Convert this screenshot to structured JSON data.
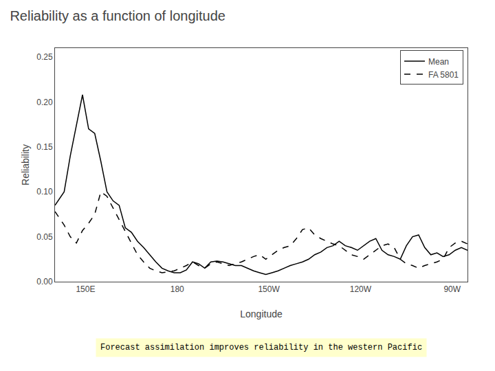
{
  "chart_data": {
    "type": "line",
    "title": "Reliability as a function of longitude",
    "subtitle": "Forecast assimilation improves reliability in the western Pacific",
    "xlabel": "Longitude",
    "ylabel": "Reliability",
    "x": [
      140,
      143,
      145,
      147,
      149,
      151,
      153,
      155,
      157,
      159,
      161,
      163,
      165,
      167,
      169,
      171,
      173,
      175,
      177,
      179,
      181,
      183,
      185,
      187,
      189,
      191,
      193,
      195,
      197,
      199,
      201,
      203,
      205,
      207,
      209,
      211,
      213,
      215,
      217,
      219,
      221,
      223,
      225,
      227,
      229,
      231,
      233,
      235,
      237,
      239,
      241,
      243,
      245,
      247,
      249,
      251,
      253,
      255,
      257,
      259,
      261,
      263,
      265,
      267,
      269,
      271,
      273,
      275
    ],
    "series": [
      {
        "name": "Mean",
        "color": "#000000",
        "line_style": "solid",
        "values": [
          0.085,
          0.1,
          0.14,
          0.175,
          0.208,
          0.17,
          0.165,
          0.134,
          0.1,
          0.09,
          0.085,
          0.06,
          0.055,
          0.045,
          0.038,
          0.03,
          0.022,
          0.015,
          0.012,
          0.01,
          0.01,
          0.013,
          0.022,
          0.02,
          0.015,
          0.022,
          0.023,
          0.022,
          0.02,
          0.018,
          0.018,
          0.015,
          0.012,
          0.01,
          0.008,
          0.01,
          0.012,
          0.015,
          0.018,
          0.02,
          0.022,
          0.025,
          0.03,
          0.033,
          0.038,
          0.04,
          0.045,
          0.04,
          0.038,
          0.035,
          0.04,
          0.045,
          0.048,
          0.035,
          0.03,
          0.028,
          0.025,
          0.04,
          0.05,
          0.052,
          0.038,
          0.03,
          0.032,
          0.028,
          0.03,
          0.035,
          0.038,
          0.035
        ]
      },
      {
        "name": "FA 5801",
        "color": "#000000",
        "line_style": "dashed",
        "values": [
          0.078,
          0.063,
          0.05,
          0.043,
          0.057,
          0.065,
          0.075,
          0.1,
          0.095,
          0.082,
          0.068,
          0.055,
          0.042,
          0.03,
          0.022,
          0.015,
          0.012,
          0.01,
          0.011,
          0.012,
          0.015,
          0.018,
          0.022,
          0.018,
          0.015,
          0.02,
          0.022,
          0.02,
          0.018,
          0.02,
          0.022,
          0.025,
          0.028,
          0.03,
          0.025,
          0.03,
          0.035,
          0.038,
          0.04,
          0.048,
          0.058,
          0.06,
          0.052,
          0.048,
          0.045,
          0.042,
          0.04,
          0.035,
          0.03,
          0.028,
          0.025,
          0.03,
          0.035,
          0.04,
          0.042,
          0.038,
          0.025,
          0.02,
          0.018,
          0.015,
          0.018,
          0.02,
          0.022,
          0.025,
          0.038,
          0.043,
          0.045,
          0.042
        ]
      }
    ],
    "xlim": [
      140,
      275
    ],
    "xticks": [
      {
        "value": 150,
        "label": "150E"
      },
      {
        "value": 180,
        "label": "180"
      },
      {
        "value": 210,
        "label": "150W"
      },
      {
        "value": 240,
        "label": "120W"
      },
      {
        "value": 270,
        "label": "90W"
      }
    ],
    "ylim": [
      0,
      0.26
    ],
    "yticks": [
      {
        "value": 0,
        "label": "0.00"
      },
      0.05,
      {
        "value": 0.1,
        "label": "0.10"
      },
      0.15,
      {
        "value": 0.2,
        "label": "0.20"
      },
      0.25
    ],
    "grid": false,
    "legend": "upper right"
  }
}
